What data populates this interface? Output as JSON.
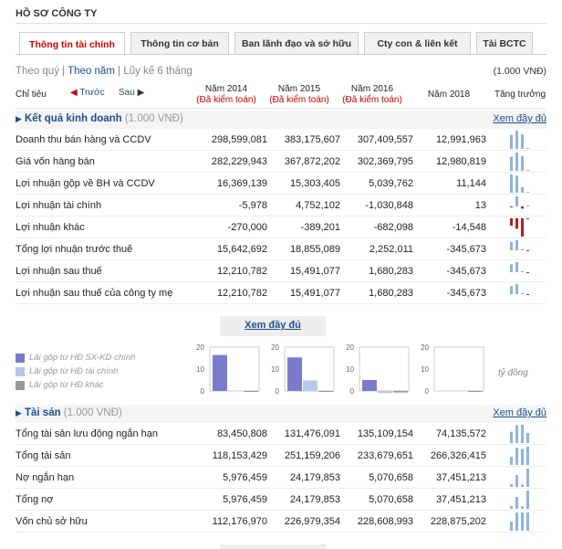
{
  "page_title": "HỒ SƠ CÔNG TY",
  "tabs": [
    {
      "label": "Thông tin tài chính",
      "active": true
    },
    {
      "label": "Thông tin cơ bản",
      "active": false
    },
    {
      "label": "Ban lãnh đạo và sở hữu",
      "active": false
    },
    {
      "label": "Cty con & liên kết",
      "active": false
    },
    {
      "label": "Tài BCTC",
      "active": false
    }
  ],
  "period": {
    "quarter": "Theo quý",
    "sep1": " | ",
    "year": "Theo năm",
    "sep2": " | ",
    "ytd": "Lũy kế 6 tháng"
  },
  "unit_label": "(1.000 VNĐ)",
  "header": {
    "indicator": "Chỉ tiêu",
    "prev": "Trước",
    "next": "Sau",
    "years": [
      {
        "year": "Năm 2014",
        "note": "(Đã kiểm toán)"
      },
      {
        "year": "Năm 2015",
        "note": "(Đã kiểm toán)"
      },
      {
        "year": "Năm 2016",
        "note": "(Đã kiểm toán)"
      },
      {
        "year": "Năm 2018",
        "note": ""
      }
    ],
    "growth": "Tăng trưởng"
  },
  "section1": {
    "name": "Kết quả kinh doanh",
    "unit": " (1.000 VNĐ)",
    "more": "Xem đầy đủ",
    "rows": [
      {
        "label": "Doanh thu bán hàng và CCDV",
        "values": [
          "298,599,081",
          "383,175,607",
          "307,409,557",
          "12,991,963"
        ]
      },
      {
        "label": "Giá vốn hàng bán",
        "values": [
          "282,229,943",
          "367,872,202",
          "302,369,795",
          "12,980,819"
        ]
      },
      {
        "label": "Lợi nhuận gộp về BH và CCDV",
        "values": [
          "16,369,139",
          "15,303,405",
          "5,039,762",
          "11,144"
        ]
      },
      {
        "label": "Lợi nhuận tài chính",
        "values": [
          "-5,978",
          "4,752,102",
          "-1,030,848",
          "13"
        ]
      },
      {
        "label": "Lợi nhuận khác",
        "values": [
          "-270,000",
          "-389,201",
          "-682,098",
          "-14,548"
        ]
      },
      {
        "label": "Tổng lợi nhuận trước thuế",
        "values": [
          "15,642,692",
          "18,855,089",
          "2,252,011",
          "-345,673"
        ]
      },
      {
        "label": "Lợi nhuận sau thuế",
        "values": [
          "12,210,782",
          "15,491,077",
          "1,680,283",
          "-345,673"
        ]
      },
      {
        "label": "Lợi nhuận sau thuế của công ty mẹ",
        "values": [
          "12,210,782",
          "15,491,077",
          "1,680,283",
          "-345,673"
        ]
      }
    ]
  },
  "more_center": "Xem đầy đủ",
  "legend": [
    {
      "label": "Lãi gộp từ HĐ SX-KD chính",
      "color": "#7b7bcc"
    },
    {
      "label": "Lãi gộp từ HĐ tài chính",
      "color": "#b8c8ea"
    },
    {
      "label": "Lãi gộp từ HĐ khác",
      "color": "#999999"
    }
  ],
  "chart_data": {
    "type": "bar",
    "ylim": [
      0,
      20
    ],
    "ticks": [
      "20",
      "10",
      "0"
    ],
    "unit_note": "tỷ đồng",
    "categories": [
      "Năm 2014",
      "Năm 2015",
      "Năm 2016",
      "Năm 2018"
    ],
    "series": [
      {
        "name": "Lãi gộp từ HĐ SX-KD chính",
        "values": [
          16.4,
          15.3,
          5.0,
          0.0
        ]
      },
      {
        "name": "Lãi gộp từ HĐ tài chính",
        "values": [
          0.0,
          4.8,
          -1.0,
          0.0
        ]
      },
      {
        "name": "Lãi gộp từ HĐ khác",
        "values": [
          -0.3,
          -0.4,
          -0.7,
          -0.01
        ]
      }
    ]
  },
  "section2": {
    "name": "Tài sản",
    "unit": " (1.000 VNĐ)",
    "more": "Xem đầy đủ",
    "rows": [
      {
        "label": "Tổng tài sản lưu động ngắn hạn",
        "values": [
          "83,450,808",
          "131,476,091",
          "135,109,154",
          "74,135,572"
        ]
      },
      {
        "label": "Tổng tài sản",
        "values": [
          "118,153,429",
          "251,159,206",
          "233,679,651",
          "266,326,415"
        ]
      },
      {
        "label": "Nợ ngắn hạn",
        "values": [
          "5,976,459",
          "24,179,853",
          "5,070,658",
          "37,451,213"
        ]
      },
      {
        "label": "Tổng nợ",
        "values": [
          "5,976,459",
          "24,179,853",
          "5,070,658",
          "37,451,213"
        ]
      },
      {
        "label": "Vốn chủ sở hữu",
        "values": [
          "112,176,970",
          "226,979,354",
          "228,608,993",
          "228,875,202"
        ]
      }
    ]
  },
  "colors": {
    "blue": "#1f4f8a",
    "red": "#cc0000",
    "spark_pos": "#8fb3dc",
    "spark_neg": "#b22222"
  }
}
